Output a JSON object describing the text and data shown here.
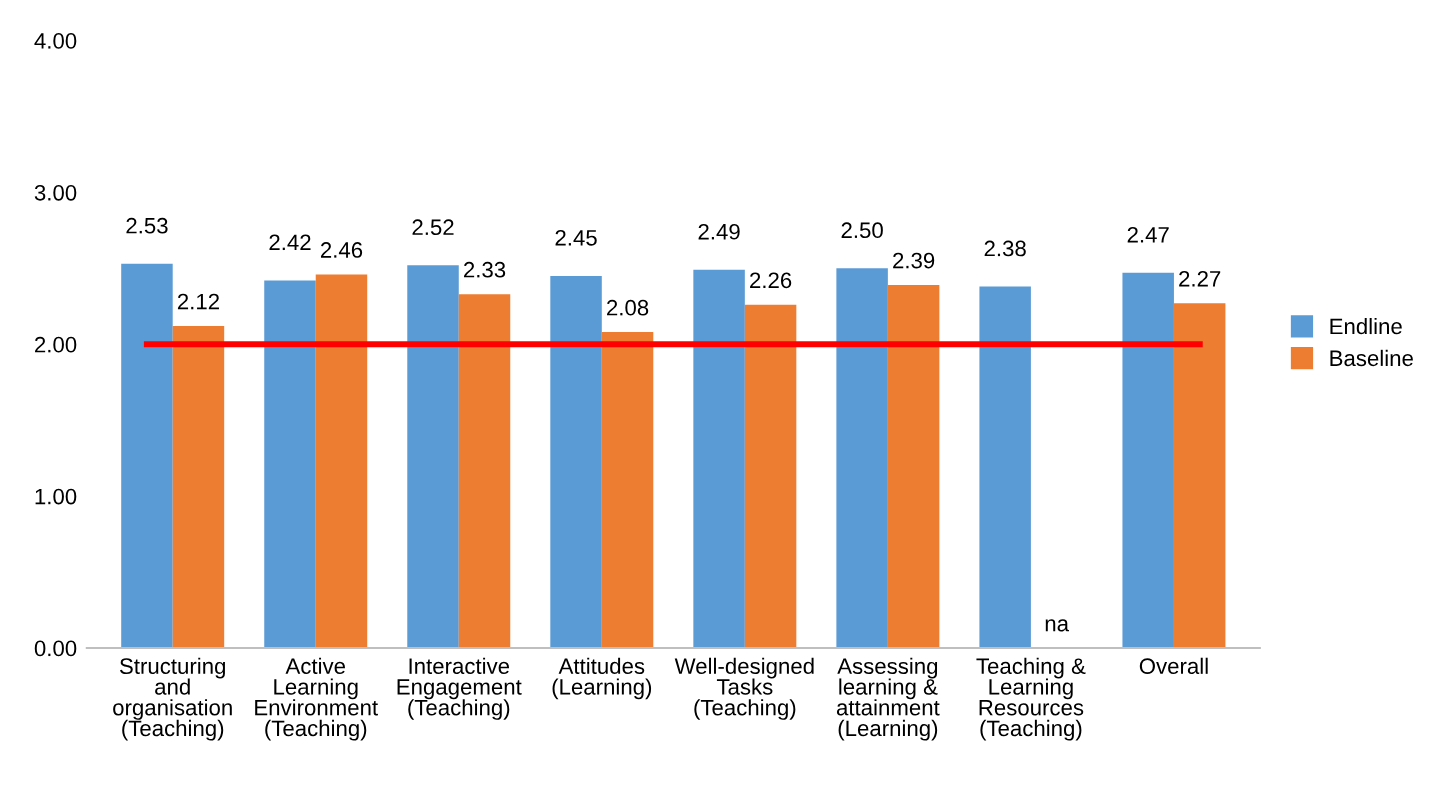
{
  "chart_data": {
    "type": "bar",
    "categories": [
      "Structuring\nand\norganisation\n(Teaching)",
      "Active\nLearning\nEnvironment\n(Teaching)",
      "Interactive\nEngagement\n(Teaching)",
      "Attitudes\n(Learning)",
      "Well-designed\nTasks\n(Teaching)",
      "Assessing\nlearning &\nattainment\n(Learning)",
      "Teaching &\nLearning\nResources\n(Teaching)",
      "Overall"
    ],
    "series": [
      {
        "name": "Endline",
        "color": "#5b9bd5",
        "values": [
          2.53,
          2.42,
          2.52,
          2.45,
          2.49,
          2.5,
          2.38,
          2.47
        ],
        "value_labels": [
          "2.53",
          "2.42",
          "2.52",
          "2.45",
          "2.49",
          "2.50",
          "2.38",
          "2.47"
        ]
      },
      {
        "name": "Baseline",
        "color": "#ed7d31",
        "values": [
          2.12,
          2.46,
          2.33,
          2.08,
          2.26,
          2.39,
          null,
          2.27
        ],
        "value_labels": [
          "2.12",
          "2.46",
          "2.33",
          "2.08",
          "2.26",
          "2.39",
          "na",
          "2.27"
        ]
      }
    ],
    "ylim": [
      0,
      4
    ],
    "yticks": [
      {
        "value": 0,
        "label": "0.00"
      },
      {
        "value": 1,
        "label": "1.00"
      },
      {
        "value": 2,
        "label": "2.00"
      },
      {
        "value": 3,
        "label": "3.00"
      },
      {
        "value": 4,
        "label": "4.00"
      }
    ],
    "ref_lines": [
      {
        "axis": "y",
        "value": 2,
        "color": "#ff0000"
      }
    ],
    "grid": false,
    "legend": "right"
  }
}
